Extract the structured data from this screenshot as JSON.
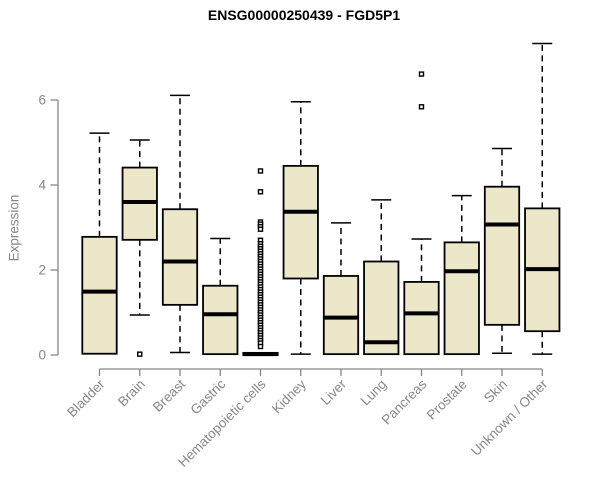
{
  "chart_data": {
    "type": "boxplot",
    "title": "ENSG00000250439 - FGD5P1",
    "ylabel": "Expression",
    "ylim": [
      0,
      7.4
    ],
    "yticks": [
      0,
      2,
      4,
      6
    ],
    "grid": false,
    "legend": "none",
    "categories": [
      "Bladder",
      "Brain",
      "Breast",
      "Gastric",
      "Hematopoietic cells",
      "Kidney",
      "Liver",
      "Lung",
      "Pancreas",
      "Prostate",
      "Skin",
      "Unknown / Other"
    ],
    "boxes": [
      {
        "category": "Bladder",
        "whisker_low": 0.03,
        "q1": 0.03,
        "median": 1.49,
        "q3": 2.78,
        "whisker_high": 5.22,
        "outliers": []
      },
      {
        "category": "Brain",
        "whisker_low": 0.94,
        "q1": 2.71,
        "median": 3.6,
        "q3": 4.41,
        "whisker_high": 5.06,
        "outliers": [
          0.02
        ]
      },
      {
        "category": "Breast",
        "whisker_low": 0.06,
        "q1": 1.18,
        "median": 2.2,
        "q3": 3.43,
        "whisker_high": 6.11,
        "outliers": []
      },
      {
        "category": "Gastric",
        "whisker_low": 0.02,
        "q1": 0.02,
        "median": 0.96,
        "q3": 1.63,
        "whisker_high": 2.74,
        "outliers": []
      },
      {
        "category": "Hematopoietic cells",
        "whisker_low": 0.0,
        "q1": 0.0,
        "median": 0.02,
        "q3": 0.05,
        "whisker_high": 0.05,
        "outliers": [
          4.33,
          3.84,
          3.13,
          3.08,
          3.02,
          2.96,
          2.7,
          2.62,
          2.56,
          2.5,
          2.44,
          2.38,
          2.32,
          2.26,
          2.2,
          2.14,
          2.08,
          2.02,
          1.96,
          1.9,
          1.84,
          1.78,
          1.72,
          1.66,
          1.6,
          1.54,
          1.48,
          1.42,
          1.36,
          1.3,
          1.24,
          1.18,
          1.12,
          1.06,
          1.0,
          0.94,
          0.88,
          0.82,
          0.76,
          0.7,
          0.64,
          0.58,
          0.52,
          0.46,
          0.4,
          0.34,
          0.28,
          0.2
        ]
      },
      {
        "category": "Kidney",
        "whisker_low": 0.02,
        "q1": 1.8,
        "median": 3.37,
        "q3": 4.45,
        "whisker_high": 5.96,
        "outliers": []
      },
      {
        "category": "Liver",
        "whisker_low": 0.02,
        "q1": 0.02,
        "median": 0.88,
        "q3": 1.86,
        "whisker_high": 3.11,
        "outliers": []
      },
      {
        "category": "Lung",
        "whisker_low": 0.02,
        "q1": 0.02,
        "median": 0.3,
        "q3": 2.2,
        "whisker_high": 3.65,
        "outliers": []
      },
      {
        "category": "Pancreas",
        "whisker_low": 0.02,
        "q1": 0.02,
        "median": 0.98,
        "q3": 1.72,
        "whisker_high": 2.73,
        "outliers": [
          5.84,
          6.61
        ]
      },
      {
        "category": "Prostate",
        "whisker_low": 0.02,
        "q1": 0.02,
        "median": 1.97,
        "q3": 2.65,
        "whisker_high": 3.75,
        "outliers": []
      },
      {
        "category": "Skin",
        "whisker_low": 0.04,
        "q1": 0.71,
        "median": 3.07,
        "q3": 3.96,
        "whisker_high": 4.86,
        "outliers": []
      },
      {
        "category": "Unknown / Other",
        "whisker_low": 0.02,
        "q1": 0.56,
        "median": 2.02,
        "q3": 3.45,
        "whisker_high": 7.33,
        "outliers": []
      }
    ],
    "colors": {
      "box_fill": "#ECE7C9",
      "box_stroke": "#000000",
      "axis": "#878787",
      "tick_label": "#878787",
      "title": "#000000"
    }
  }
}
